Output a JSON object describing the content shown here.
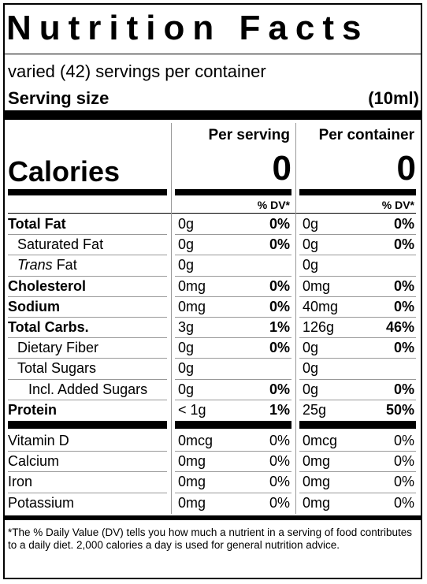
{
  "title": "Nutrition Facts",
  "servings": "varied (42) servings per container",
  "serving_size_label": "Serving size",
  "serving_size_value": "(10ml)",
  "col_per_serving": "Per serving",
  "col_per_container": "Per container",
  "calories_label": "Calories",
  "calories_serving": "0",
  "calories_container": "0",
  "dv_label": "% DV*",
  "nutrients": [
    {
      "name": "Total Fat",
      "bold": true,
      "indent": 0,
      "s_amt": "0g",
      "s_dv": "0%",
      "c_amt": "0g",
      "c_dv": "0%"
    },
    {
      "name": "Saturated Fat",
      "bold": false,
      "indent": 1,
      "s_amt": "0g",
      "s_dv": "0%",
      "c_amt": "0g",
      "c_dv": "0%"
    },
    {
      "name": "Trans Fat",
      "bold": false,
      "indent": 1,
      "italic_prefix": "Trans",
      "s_amt": "0g",
      "s_dv": "",
      "c_amt": "0g",
      "c_dv": ""
    },
    {
      "name": "Cholesterol",
      "bold": true,
      "indent": 0,
      "s_amt": "0mg",
      "s_dv": "0%",
      "c_amt": "0mg",
      "c_dv": "0%"
    },
    {
      "name": "Sodium",
      "bold": true,
      "indent": 0,
      "s_amt": "0mg",
      "s_dv": "0%",
      "c_amt": "40mg",
      "c_dv": "0%"
    },
    {
      "name": "Total Carbs.",
      "bold": true,
      "indent": 0,
      "s_amt": "3g",
      "s_dv": "1%",
      "c_amt": "126g",
      "c_dv": "46%"
    },
    {
      "name": "Dietary Fiber",
      "bold": false,
      "indent": 1,
      "s_amt": "0g",
      "s_dv": "0%",
      "c_amt": "0g",
      "c_dv": "0%"
    },
    {
      "name": "Total Sugars",
      "bold": false,
      "indent": 1,
      "s_amt": "0g",
      "s_dv": "",
      "c_amt": "0g",
      "c_dv": ""
    },
    {
      "name": "Incl. Added Sugars",
      "bold": false,
      "indent": 2,
      "s_amt": "0g",
      "s_dv": "0%",
      "c_amt": "0g",
      "c_dv": "0%"
    },
    {
      "name": "Protein",
      "bold": true,
      "indent": 0,
      "s_amt": "< 1g",
      "s_dv": "1%",
      "c_amt": "25g",
      "c_dv": "50%"
    }
  ],
  "vitamins": [
    {
      "name": "Vitamin D",
      "s_amt": "0mcg",
      "s_dv": "0%",
      "c_amt": "0mcg",
      "c_dv": "0%"
    },
    {
      "name": "Calcium",
      "s_amt": "0mg",
      "s_dv": "0%",
      "c_amt": "0mg",
      "c_dv": "0%"
    },
    {
      "name": "Iron",
      "s_amt": "0mg",
      "s_dv": "0%",
      "c_amt": "0mg",
      "c_dv": "0%"
    },
    {
      "name": "Potassium",
      "s_amt": "0mg",
      "s_dv": "0%",
      "c_amt": "0mg",
      "c_dv": "0%"
    }
  ],
  "footnote": "*The % Daily Value (DV) tells you how much a nutrient in a serving of food contributes to a daily diet. 2,000 calories a day is used for general nutrition advice."
}
